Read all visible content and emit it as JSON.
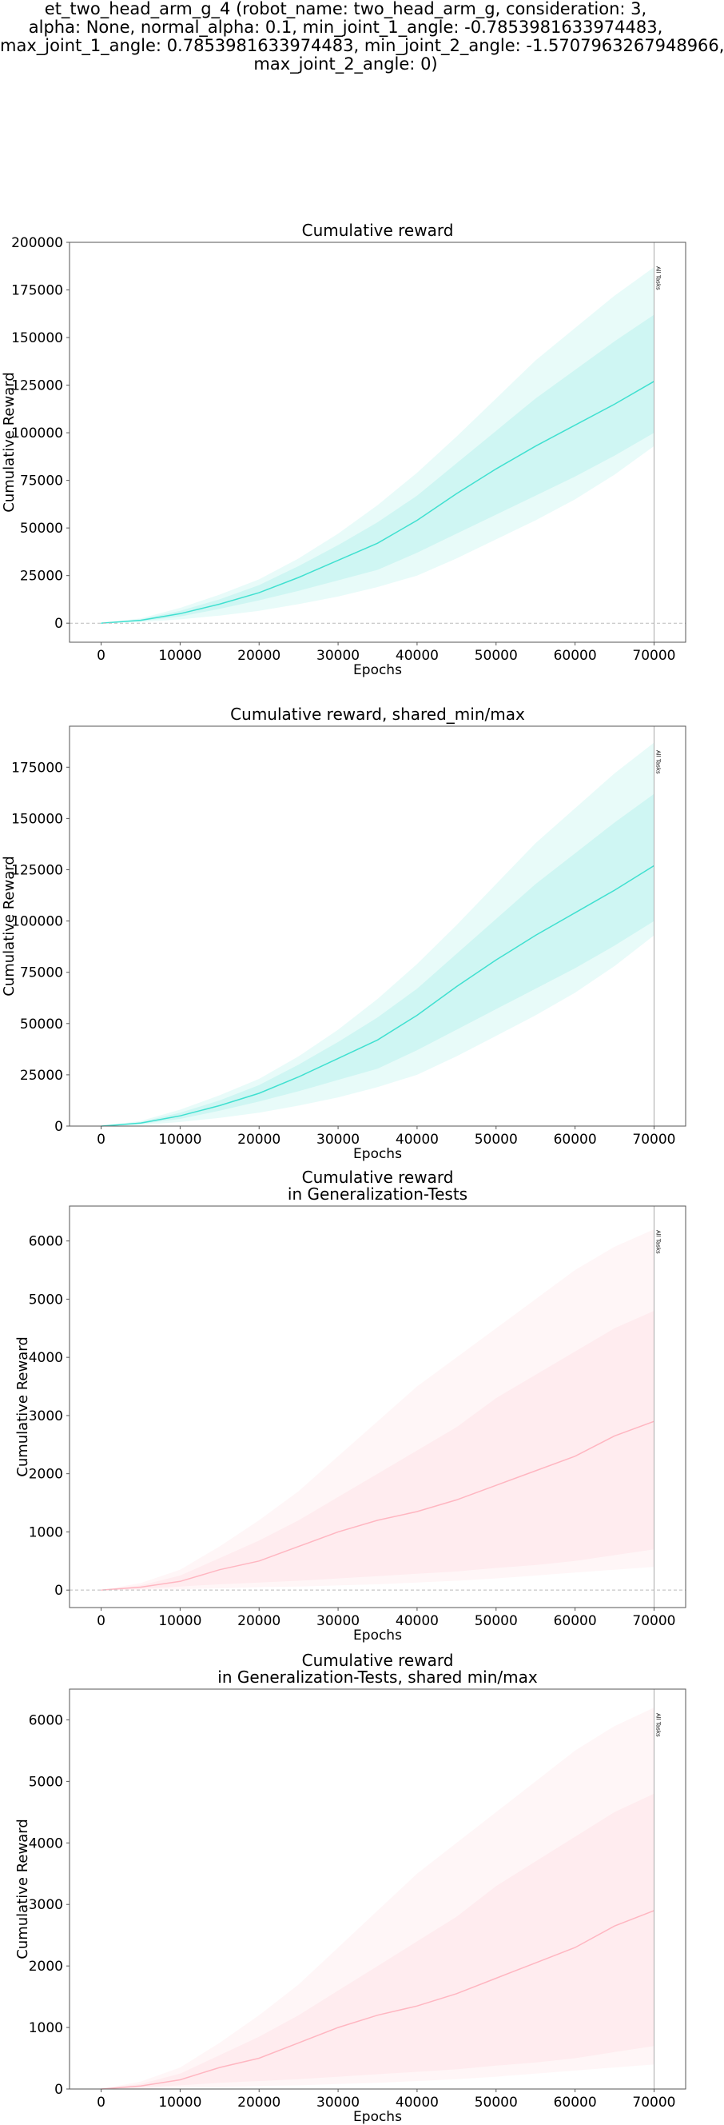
{
  "figure": {
    "suptitle_lines": [
      "et_two_head_arm_g_4 (robot_name: two_head_arm_g, consideration: 3,",
      "alpha: None, normal_alpha: 0.1, min_joint_1_angle: -0.7853981633974483,",
      "max_joint_1_angle: 0.7853981633974483, min_joint_2_angle: -1.5707963267948966,",
      "max_joint_2_angle: 0)"
    ]
  },
  "colors": {
    "teal": "#40E0D0",
    "pink": "#FFB6C1",
    "axis": "#555555",
    "zero_line": "#bbbbbb",
    "marker_line": "#aaaaaa"
  },
  "chart_data": [
    {
      "type": "area",
      "title_lines": [
        "Cumulative reward"
      ],
      "xlabel": "Epochs",
      "ylabel": "Cumulative Reward",
      "xlim": [
        -4000,
        74000
      ],
      "ylim": [
        -10000,
        200000
      ],
      "xticks": [
        0,
        10000,
        20000,
        30000,
        40000,
        50000,
        60000,
        70000
      ],
      "yticks": [
        0,
        25000,
        50000,
        75000,
        100000,
        125000,
        150000,
        175000,
        200000
      ],
      "zero_line": true,
      "vertical_marker": {
        "x": 70000,
        "label": "All Tasks"
      },
      "series": [
        {
          "color": "teal",
          "x": [
            0,
            5000,
            10000,
            15000,
            20000,
            25000,
            30000,
            35000,
            40000,
            45000,
            50000,
            55000,
            60000,
            65000,
            70000
          ],
          "mean": [
            0,
            1500,
            5000,
            10000,
            16000,
            24000,
            33000,
            42000,
            54000,
            68000,
            81000,
            93000,
            104000,
            115000,
            127000
          ],
          "inner_low": [
            0,
            1000,
            3500,
            7500,
            12000,
            17000,
            22500,
            28000,
            37000,
            47000,
            57000,
            67000,
            77000,
            88000,
            100000
          ],
          "inner_high": [
            0,
            2000,
            6500,
            12500,
            20000,
            30000,
            41000,
            53000,
            67000,
            84000,
            101000,
            118000,
            133000,
            148000,
            162000
          ],
          "outer_low": [
            0,
            500,
            2000,
            4000,
            6500,
            10000,
            14000,
            19000,
            25000,
            34000,
            44000,
            54000,
            65000,
            78000,
            93000
          ],
          "outer_high": [
            0,
            2500,
            8000,
            15000,
            23000,
            34000,
            47000,
            62000,
            79000,
            98000,
            118000,
            138000,
            155000,
            172000,
            187000
          ]
        }
      ]
    },
    {
      "type": "area",
      "title_lines": [
        "Cumulative reward, shared_min/max"
      ],
      "xlabel": "Epochs",
      "ylabel": "Cumulative Reward",
      "xlim": [
        -4000,
        74000
      ],
      "ylim": [
        0,
        195000
      ],
      "xticks": [
        0,
        10000,
        20000,
        30000,
        40000,
        50000,
        60000,
        70000
      ],
      "yticks": [
        0,
        25000,
        50000,
        75000,
        100000,
        125000,
        150000,
        175000
      ],
      "zero_line": false,
      "vertical_marker": {
        "x": 70000,
        "label": "All Tasks"
      },
      "series": [
        {
          "color": "teal",
          "x": [
            0,
            5000,
            10000,
            15000,
            20000,
            25000,
            30000,
            35000,
            40000,
            45000,
            50000,
            55000,
            60000,
            65000,
            70000
          ],
          "mean": [
            0,
            1500,
            5000,
            10000,
            16000,
            24000,
            33000,
            42000,
            54000,
            68000,
            81000,
            93000,
            104000,
            115000,
            127000
          ],
          "inner_low": [
            0,
            1000,
            3500,
            7500,
            12000,
            17000,
            22500,
            28000,
            37000,
            47000,
            57000,
            67000,
            77000,
            88000,
            100000
          ],
          "inner_high": [
            0,
            2000,
            6500,
            12500,
            20000,
            30000,
            41000,
            53000,
            67000,
            84000,
            101000,
            118000,
            133000,
            148000,
            162000
          ],
          "outer_low": [
            0,
            500,
            2000,
            4000,
            6500,
            10000,
            14000,
            19000,
            25000,
            34000,
            44000,
            54000,
            65000,
            78000,
            93000
          ],
          "outer_high": [
            0,
            2500,
            8000,
            15000,
            23000,
            34000,
            47000,
            62000,
            79000,
            98000,
            118000,
            138000,
            155000,
            172000,
            187000
          ]
        }
      ]
    },
    {
      "type": "area",
      "title_lines": [
        "Cumulative reward",
        "in Generalization-Tests"
      ],
      "xlabel": "Epochs",
      "ylabel": "Cumulative Reward",
      "xlim": [
        -4000,
        74000
      ],
      "ylim": [
        -300,
        6600
      ],
      "xticks": [
        0,
        10000,
        20000,
        30000,
        40000,
        50000,
        60000,
        70000
      ],
      "yticks": [
        0,
        1000,
        2000,
        3000,
        4000,
        5000,
        6000
      ],
      "zero_line": true,
      "vertical_marker": {
        "x": 70000,
        "label": "All Tasks"
      },
      "series": [
        {
          "color": "pink",
          "x": [
            0,
            5000,
            10000,
            15000,
            20000,
            25000,
            30000,
            35000,
            40000,
            45000,
            50000,
            55000,
            60000,
            65000,
            70000
          ],
          "mean": [
            0,
            50,
            150,
            350,
            500,
            750,
            1000,
            1200,
            1350,
            1550,
            1800,
            2050,
            2300,
            2650,
            2900
          ],
          "inner_low": [
            0,
            20,
            60,
            100,
            130,
            160,
            200,
            240,
            280,
            320,
            380,
            430,
            500,
            600,
            700
          ],
          "inner_high": [
            0,
            80,
            250,
            550,
            850,
            1200,
            1600,
            2000,
            2400,
            2800,
            3300,
            3700,
            4100,
            4500,
            4800
          ],
          "outer_low": [
            0,
            5,
            15,
            30,
            50,
            60,
            80,
            100,
            130,
            160,
            200,
            250,
            300,
            350,
            400
          ],
          "outer_high": [
            0,
            120,
            350,
            750,
            1200,
            1700,
            2300,
            2900,
            3500,
            4000,
            4500,
            5000,
            5500,
            5900,
            6200
          ]
        }
      ]
    },
    {
      "type": "area",
      "title_lines": [
        "Cumulative reward",
        "in Generalization-Tests, shared min/max"
      ],
      "xlabel": "Epochs",
      "ylabel": "Cumulative Reward",
      "xlim": [
        -4000,
        74000
      ],
      "ylim": [
        0,
        6500
      ],
      "xticks": [
        0,
        10000,
        20000,
        30000,
        40000,
        50000,
        60000,
        70000
      ],
      "yticks": [
        0,
        1000,
        2000,
        3000,
        4000,
        5000,
        6000
      ],
      "zero_line": false,
      "vertical_marker": {
        "x": 70000,
        "label": "All Tasks"
      },
      "series": [
        {
          "color": "pink",
          "x": [
            0,
            5000,
            10000,
            15000,
            20000,
            25000,
            30000,
            35000,
            40000,
            45000,
            50000,
            55000,
            60000,
            65000,
            70000
          ],
          "mean": [
            0,
            50,
            150,
            350,
            500,
            750,
            1000,
            1200,
            1350,
            1550,
            1800,
            2050,
            2300,
            2650,
            2900
          ],
          "inner_low": [
            0,
            20,
            60,
            100,
            130,
            160,
            200,
            240,
            280,
            320,
            380,
            430,
            500,
            600,
            700
          ],
          "inner_high": [
            0,
            80,
            250,
            550,
            850,
            1200,
            1600,
            2000,
            2400,
            2800,
            3300,
            3700,
            4100,
            4500,
            4800
          ],
          "outer_low": [
            0,
            5,
            15,
            30,
            50,
            60,
            80,
            100,
            130,
            160,
            200,
            250,
            300,
            350,
            400
          ],
          "outer_high": [
            0,
            120,
            350,
            750,
            1200,
            1700,
            2300,
            2900,
            3500,
            4000,
            4500,
            5000,
            5500,
            5900,
            6200
          ]
        }
      ]
    }
  ]
}
